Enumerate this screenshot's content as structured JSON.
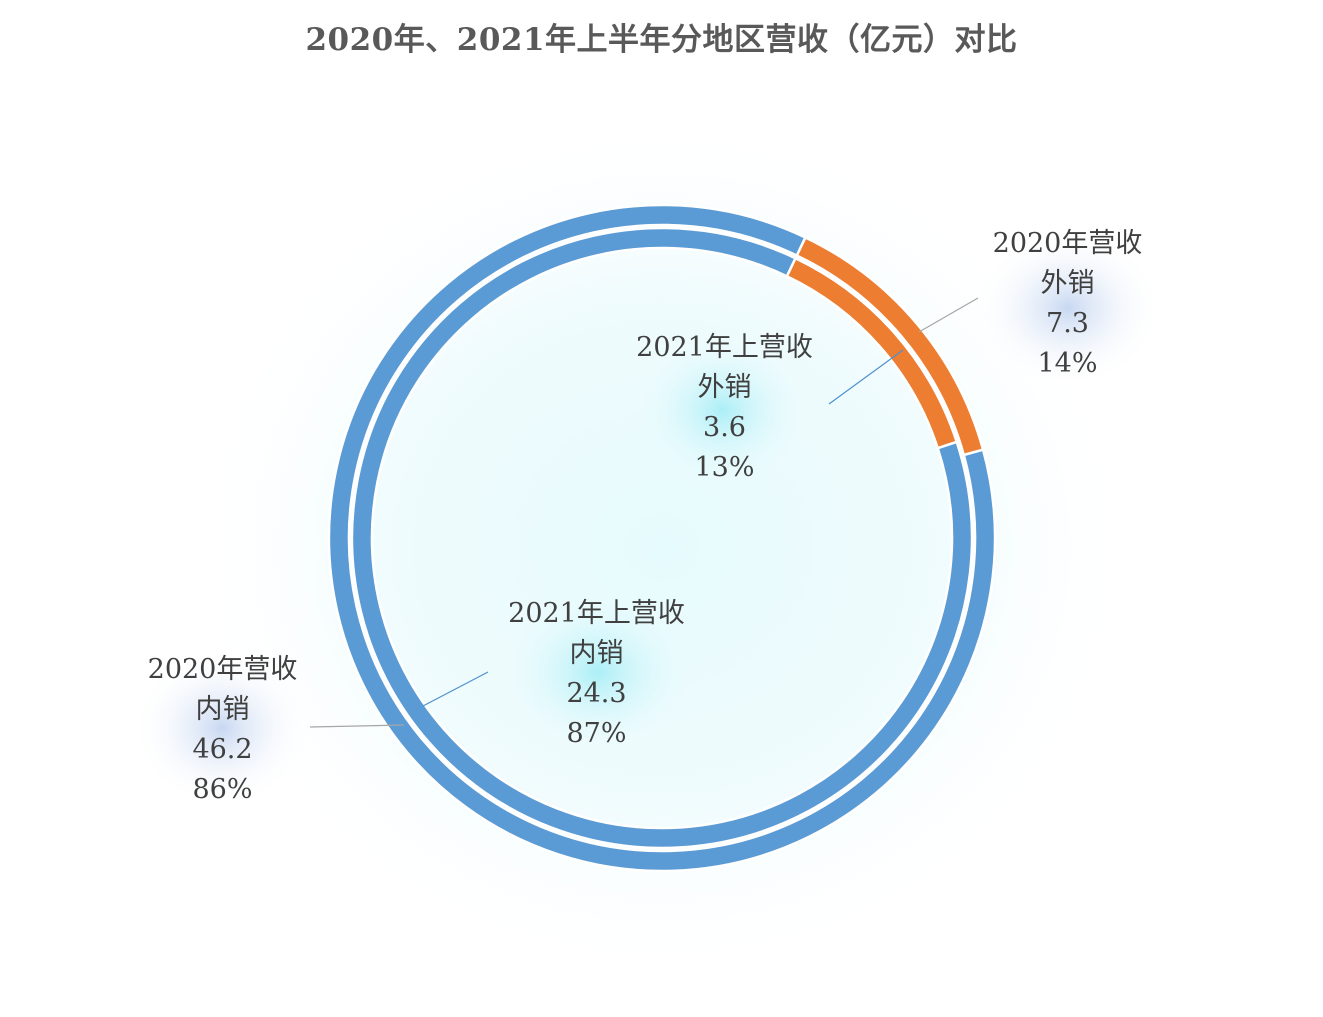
{
  "chart_data": {
    "type": "doughnut",
    "title": "2020年、2021年上半年分地区营收（亿元）对比",
    "rings": [
      {
        "ring": "outer",
        "slices": [
          {
            "name": "2020年营收",
            "category": "外销",
            "value": "7.3",
            "percent": "14%",
            "color": "#ED7D31"
          },
          {
            "name": "2020年营收",
            "category": "内销",
            "value": "46.2",
            "percent": "86%",
            "color": "#5B9BD5"
          }
        ]
      },
      {
        "ring": "inner",
        "slices": [
          {
            "name": "2021年上营收",
            "category": "外销",
            "value": "3.6",
            "percent": "13%",
            "color": "#ED7D31"
          },
          {
            "name": "2021年上营收",
            "category": "内销",
            "value": "24.3",
            "percent": "87%",
            "color": "#5B9BD5"
          }
        ]
      }
    ]
  }
}
